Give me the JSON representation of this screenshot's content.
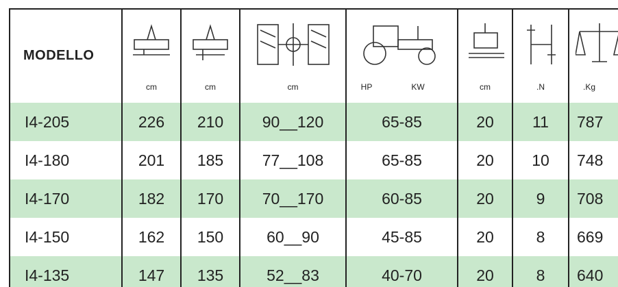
{
  "header": {
    "title": "MODELLO",
    "units": [
      "cm",
      "cm",
      "cm",
      "HP",
      "KW",
      "cm",
      ".N",
      ".Kg"
    ]
  },
  "table": {
    "rows": [
      [
        "I4-205",
        "226",
        "210",
        "90__120",
        "65-85",
        "20",
        "11",
        "787"
      ],
      [
        "I4-180",
        "201",
        "185",
        "77__108",
        "65-85",
        "20",
        "10",
        "748"
      ],
      [
        "I4-170",
        "182",
        "170",
        "70__170",
        "60-85",
        "20",
        "9",
        "708"
      ],
      [
        "I4-150",
        "162",
        "150",
        "60__90",
        "45-85",
        "20",
        "8",
        "669"
      ],
      [
        "I4-135",
        "147",
        "135",
        "52__83",
        "40-70",
        "20",
        "8",
        "640"
      ]
    ]
  }
}
